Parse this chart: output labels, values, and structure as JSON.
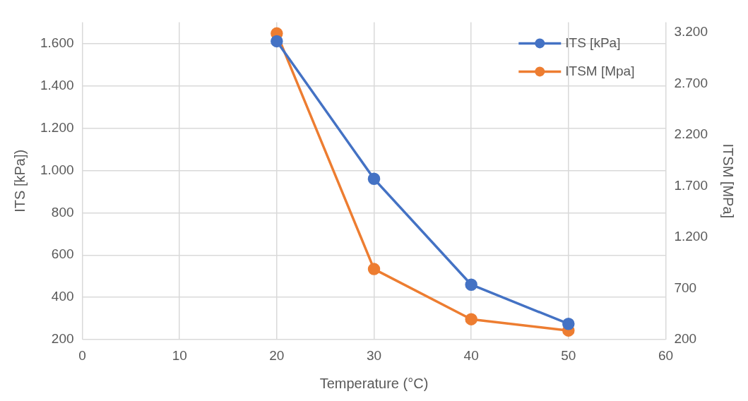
{
  "chart_data": {
    "type": "line",
    "xlabel": "Temperature (°C)",
    "ylabel": "ITS [kPa])",
    "y2label": "ITSM [MPa]",
    "x": [
      20,
      30,
      40,
      50
    ],
    "series": [
      {
        "name": "ITS [kPa]",
        "color": "#4472c4",
        "values": [
          1610,
          960,
          460,
          275
        ]
      },
      {
        "name": "ITSM [Mpa]",
        "color": "#ed7d31",
        "values": [
          3190,
          890,
          400,
          290
        ],
        "axis": "y2"
      }
    ],
    "xlim": [
      0,
      60
    ],
    "xticks": [
      0,
      10,
      20,
      30,
      40,
      50,
      60
    ],
    "ylim": [
      200,
      1700
    ],
    "yticks": [
      {
        "value": 200,
        "label": "200"
      },
      {
        "value": 400,
        "label": "400"
      },
      {
        "value": 600,
        "label": "600"
      },
      {
        "value": 800,
        "label": "800"
      },
      {
        "value": 1000,
        "label": "1.000"
      },
      {
        "value": 1200,
        "label": "1.200"
      },
      {
        "value": 1400,
        "label": "1.400"
      },
      {
        "value": 1600,
        "label": "1.600"
      }
    ],
    "y2lim": [
      200,
      3300
    ],
    "y2ticks": [
      {
        "value": 200,
        "label": "200"
      },
      {
        "value": 700,
        "label": "700"
      },
      {
        "value": 1200,
        "label": "1.200"
      },
      {
        "value": 1700,
        "label": "1.700"
      },
      {
        "value": 2200,
        "label": "2.200"
      },
      {
        "value": 2700,
        "label": "2.700"
      },
      {
        "value": 3200,
        "label": "3.200"
      }
    ],
    "grid": true,
    "legend": "top right",
    "marker": "circle",
    "line_style": "solid"
  }
}
